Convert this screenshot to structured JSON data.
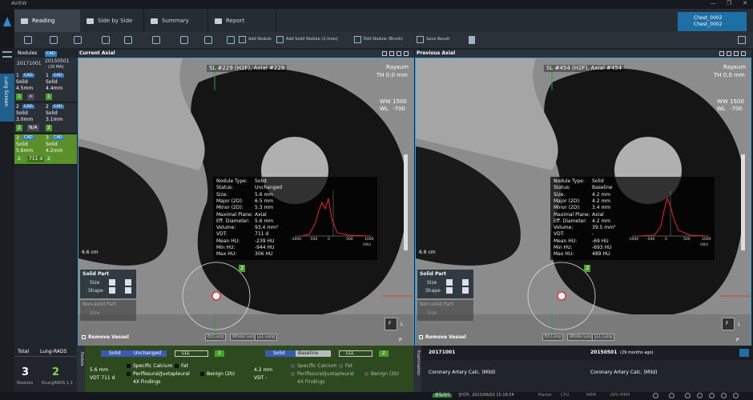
{
  "app": {
    "title": "AVIEW"
  },
  "tabs": [
    "Reading",
    "Side by Side",
    "Summary",
    "Report"
  ],
  "patient": [
    "Chest_0002",
    "Chest_0002"
  ],
  "toolbar": [
    "Add Nodule",
    "Add Solid Nodule (2-lines)",
    "Edit Nodule (Brush)",
    "Save Result"
  ],
  "side_label": "Lung Screen",
  "nodule_panel": {
    "header": "Nodules",
    "cad": "CAD",
    "dates": [
      "20171001",
      "20150501"
    ],
    "interval": "(29 MA)",
    "rows": [
      {
        "current": {
          "id": "1",
          "tag": "CAD",
          "type": "Solid",
          "size": "4.5mm",
          "grade": "1",
          "vdt": "∞"
        },
        "previous": {
          "id": "1",
          "tag": "CAD",
          "type": "Solid",
          "size": "4.4mm",
          "grade": "1"
        }
      },
      {
        "current": {
          "id": "2",
          "tag": "CAD",
          "type": "Solid",
          "size": "3.0mm",
          "grade": "2",
          "vdt": "N/A"
        },
        "previous": {
          "id": "2",
          "tag": "CAD",
          "type": "Solid",
          "size": "3.1mm",
          "grade": "2"
        }
      },
      {
        "current": {
          "id": "3",
          "tag": "CAD",
          "type": "Solid",
          "size": "5.6mm",
          "grade": "2",
          "vdt": "711 d"
        },
        "previous": {
          "id": "3",
          "tag": "CAD",
          "type": "Solid",
          "size": "4.2mm",
          "grade": "2"
        }
      }
    ]
  },
  "viewports": [
    {
      "title": "Current Axial",
      "slice": "SL #229 (H2F), Axial #229",
      "render": "Raysum",
      "thickness": "TH 0.0 mm",
      "ww_label": "WW",
      "ww": "1500",
      "wl_label": "WL",
      "wl": "-700",
      "scale": "6.6 cm",
      "marker": "2",
      "info": [
        [
          "Nodule Type:",
          "Solid"
        ],
        [
          "Status:",
          "Unchanged"
        ],
        [
          "Size:",
          "5.6 mm"
        ],
        [
          "Major (2D):",
          "6.5 mm"
        ],
        [
          "Minor (2D):",
          "5.3 mm"
        ],
        [
          "Maximal Plane:",
          "Axial"
        ],
        [
          "Eff. Diameter:",
          "5.6 mm"
        ],
        [
          "Volume:",
          "93.4 mm³"
        ],
        [
          "VDT:",
          "711 d"
        ],
        [
          "Mean HU:",
          "-239 HU"
        ],
        [
          "Min HU:",
          "-944 HU"
        ],
        [
          "Max HU:",
          "306 HU"
        ]
      ],
      "hist_ticks": [
        "-1000",
        "-500",
        "0",
        "500",
        "1000"
      ],
      "hist_unit": "(HU)",
      "controls": [
        "Solid Part",
        "Size",
        "Shape",
        "Non-solid Part",
        "Size",
        "Remove Vessel"
      ],
      "buttons": [
        "Ed.Lung",
        "Whole Lung",
        "LLL Lung"
      ],
      "orient": [
        "F",
        "L",
        "P"
      ]
    },
    {
      "title": "Previous Axial",
      "slice": "SL #454 (H2F), Axial #454",
      "render": "Raysum",
      "thickness": "TH 0.0 mm",
      "ww_label": "WW",
      "ww": "1500",
      "wl_label": "WL",
      "wl": "-700",
      "scale": "6.6 cm",
      "marker": "2",
      "info": [
        [
          "Nodule Type:",
          "Solid"
        ],
        [
          "Status:",
          "Baseline"
        ],
        [
          "Size:",
          "4.2 mm"
        ],
        [
          "Major (2D):",
          "4.2 mm"
        ],
        [
          "Minor (2D):",
          "3.4 mm"
        ],
        [
          "Maximal Plane:",
          "Axial"
        ],
        [
          "Eff. Diameter:",
          "4.2 mm"
        ],
        [
          "Volume:",
          "39.5 mm³"
        ],
        [
          "VDT:",
          "-"
        ],
        [
          "Mean HU:",
          "-69 HU"
        ],
        [
          "Min HU:",
          "-693 HU"
        ],
        [
          "Max HU:",
          "489 HU"
        ]
      ],
      "hist_ticks": [
        "-1000",
        "-500",
        "0",
        "500",
        "1000"
      ],
      "hist_unit": "(HU)",
      "controls": [
        "Solid Part",
        "Size",
        "Shape",
        "Non-solid Part",
        "Size",
        "Remove Vessel"
      ],
      "buttons": [
        "Ed.Lung",
        "Whole Lung",
        "LLL Lung"
      ],
      "orient": [
        "F",
        "L",
        "P"
      ]
    }
  ],
  "summary": {
    "total_label": "Total",
    "lungrads_label": "Lung-RADS",
    "total": "3",
    "lungrads": "2",
    "total_sub": "Nodules",
    "lungrads_sub": "KLungRADS 1.1"
  },
  "nodule_detail": {
    "label": "Nodule",
    "columns": [
      {
        "type": "Solid",
        "status": "Unchanged",
        "location": "LLL",
        "grade": "2",
        "size": "5.6 mm",
        "vdt": "VDT 711 d",
        "options": [
          "Specific Calcium",
          "Fat",
          "Perifissural/Juxtapleural",
          "Benign (2b)",
          "4X Findings"
        ]
      },
      {
        "type": "Solid",
        "status": "Baseline",
        "location": "LLL",
        "grade": "2",
        "size": "4.2 mm",
        "vdt": "VDT -",
        "options": [
          "Specific Calcium",
          "Fat",
          "Perifissural/Juxtapleural",
          "Benign (2b)",
          "4X Findings"
        ]
      }
    ]
  },
  "examination": {
    "label": "Examination",
    "dates": [
      "20171001",
      "20150501"
    ],
    "ago": "(29 months ago)",
    "findings": [
      "Coronary Artery Calc. (Mild)",
      "Coronary Artery Calc. (Mild)"
    ]
  },
  "status_bar": [
    "판독대기",
    "관리자, 2023/06/02 15:16:54",
    "Master",
    "CPU",
    "MEM",
    "GPU MEM"
  ]
}
